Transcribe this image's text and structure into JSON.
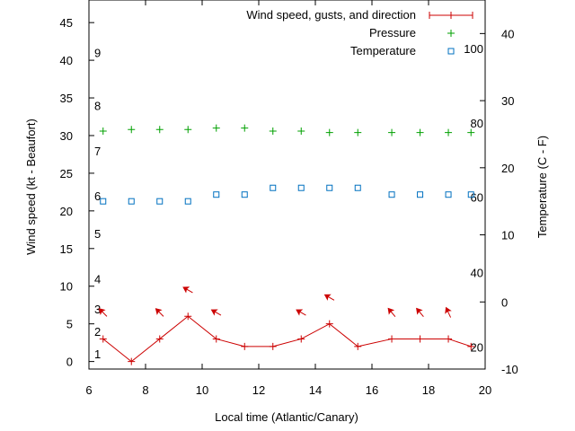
{
  "chart_data": {
    "type": "line",
    "xlabel": "Local time (Atlantic/Canary)",
    "ylabel_left": "Wind speed (kt - Beaufort)",
    "ylabel_right": "Temperature (C - F)",
    "x_range": [
      6,
      20
    ],
    "y_left_range": [
      -1,
      48
    ],
    "y_right_range": [
      -10,
      45
    ],
    "x_ticks": [
      6,
      8,
      10,
      12,
      14,
      16,
      18,
      20
    ],
    "y_left_ticks": [
      0,
      5,
      10,
      15,
      20,
      25,
      30,
      35,
      40,
      45
    ],
    "y_right_ticks": [
      -10,
      0,
      10,
      20,
      30,
      40
    ],
    "beaufort_labels": [
      {
        "label": "1",
        "y": 1
      },
      {
        "label": "2",
        "y": 4
      },
      {
        "label": "3",
        "y": 7
      },
      {
        "label": "4",
        "y": 11
      },
      {
        "label": "5",
        "y": 17
      },
      {
        "label": "6",
        "y": 22
      },
      {
        "label": "7",
        "y": 28
      },
      {
        "label": "8",
        "y": 34
      },
      {
        "label": "9",
        "y": 41
      }
    ],
    "fahrenheit_labels": [
      {
        "label": "20",
        "temp": -6.7
      },
      {
        "label": "40",
        "temp": 4.4
      },
      {
        "label": "60",
        "temp": 15.6
      },
      {
        "label": "80",
        "temp": 26.7
      },
      {
        "label": "100",
        "temp": 37.8
      }
    ],
    "legend": [
      {
        "label": "Wind speed, gusts, and direction",
        "color": "#cc0000"
      },
      {
        "label": "Pressure",
        "color": "#00a000"
      },
      {
        "label": "Temperature",
        "color": "#0070c0"
      }
    ],
    "wind": {
      "x": [
        6.5,
        7.5,
        8.5,
        9.5,
        10.5,
        11.5,
        12.5,
        13.5,
        14.5,
        15.5,
        16.7,
        17.7,
        18.7,
        19.5
      ],
      "y": [
        3,
        0,
        3,
        6,
        3,
        2,
        2,
        3,
        5,
        2,
        3,
        3,
        3,
        2
      ]
    },
    "arrows": [
      {
        "x": 6.5,
        "y": 6.5,
        "angle_deg": 135
      },
      {
        "x": 8.5,
        "y": 6.5,
        "angle_deg": 135
      },
      {
        "x": 9.5,
        "y": 9.5,
        "angle_deg": 150
      },
      {
        "x": 10.5,
        "y": 6.5,
        "angle_deg": 150
      },
      {
        "x": 13.5,
        "y": 6.5,
        "angle_deg": 150
      },
      {
        "x": 14.5,
        "y": 8.5,
        "angle_deg": 150
      },
      {
        "x": 16.7,
        "y": 6.5,
        "angle_deg": 130
      },
      {
        "x": 17.7,
        "y": 6.5,
        "angle_deg": 130
      },
      {
        "x": 18.7,
        "y": 6.5,
        "angle_deg": 115
      }
    ],
    "pressure": {
      "x": [
        6.5,
        7.5,
        8.5,
        9.5,
        10.5,
        11.5,
        12.5,
        13.5,
        14.5,
        15.5,
        16.7,
        17.7,
        18.7,
        19.5
      ],
      "y": [
        30.6,
        30.8,
        30.8,
        30.8,
        31.0,
        31.0,
        30.6,
        30.6,
        30.4,
        30.4,
        30.4,
        30.4,
        30.4,
        30.4
      ]
    },
    "temperature": {
      "x": [
        6.5,
        7.5,
        8.5,
        9.5,
        10.5,
        11.5,
        12.5,
        13.5,
        14.5,
        15.5,
        16.7,
        17.7,
        18.7,
        19.5
      ],
      "y": [
        15,
        15,
        15,
        15,
        16,
        16,
        17,
        17,
        17,
        17,
        16,
        16,
        16,
        16
      ]
    }
  }
}
